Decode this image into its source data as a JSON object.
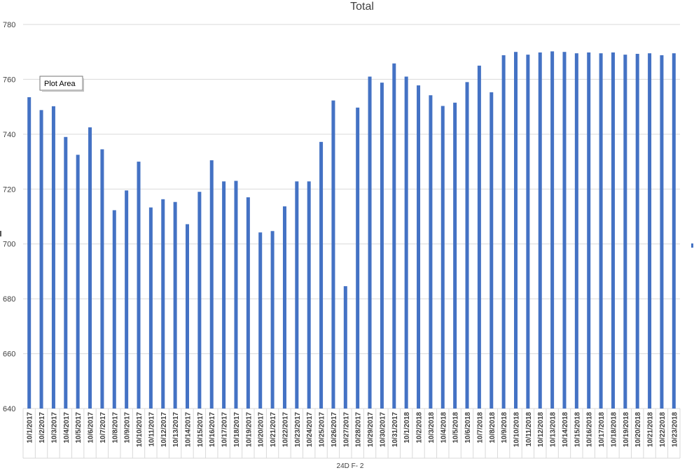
{
  "chart_data": {
    "type": "bar",
    "title": "Total",
    "xlabel": "",
    "ylabel": "",
    "ylim": [
      640,
      780
    ],
    "yticks": [
      "640",
      "660",
      "680",
      "700",
      "720",
      "740",
      "760",
      "780"
    ],
    "group_label": "24D F- 2",
    "grid": true,
    "color": "#4472C4",
    "categories": [
      "10/1/2017",
      "10/2/2017",
      "10/3/2017",
      "10/4/2017",
      "10/5/2017",
      "10/6/2017",
      "10/7/2017",
      "10/8/2017",
      "10/9/2017",
      "10/10/2017",
      "10/11/2017",
      "10/12/2017",
      "10/13/2017",
      "10/14/2017",
      "10/15/2017",
      "10/16/2017",
      "10/17/2017",
      "10/18/2017",
      "10/19/2017",
      "10/20/2017",
      "10/21/2017",
      "10/22/2017",
      "10/23/2017",
      "10/24/2017",
      "10/25/2017",
      "10/26/2017",
      "10/27/2017",
      "10/28/2017",
      "10/29/2017",
      "10/30/2017",
      "10/31/2017",
      "10/1/2018",
      "10/2/2018",
      "10/3/2018",
      "10/4/2018",
      "10/5/2018",
      "10/6/2018",
      "10/7/2018",
      "10/8/2018",
      "10/9/2018",
      "10/10/2018",
      "10/11/2018",
      "10/12/2018",
      "10/13/2018",
      "10/14/2018",
      "10/15/2018",
      "10/16/2018",
      "10/17/2018",
      "10/18/2018",
      "10/19/2018",
      "10/20/2018",
      "10/21/2018",
      "10/22/2018",
      "10/23/2018"
    ],
    "values": [
      753.5,
      748.8,
      750.2,
      739,
      732.5,
      742.5,
      734.5,
      712.3,
      719.5,
      730,
      713.3,
      716.3,
      715.3,
      707.2,
      719,
      730.5,
      722.8,
      723,
      717,
      704.2,
      704.7,
      713.7,
      722.8,
      722.8,
      737.2,
      752.3,
      684.6,
      749.7,
      761,
      758.8,
      765.8,
      761,
      757.8,
      754.2,
      750.3,
      751.5,
      759,
      765,
      755.3,
      768.8,
      770,
      769,
      769.8,
      770.2,
      770,
      769.5,
      769.8,
      769.5,
      769.8,
      769,
      769.3,
      769.5,
      768.8,
      769.5
    ]
  },
  "tooltip": {
    "label": "Plot Area"
  }
}
